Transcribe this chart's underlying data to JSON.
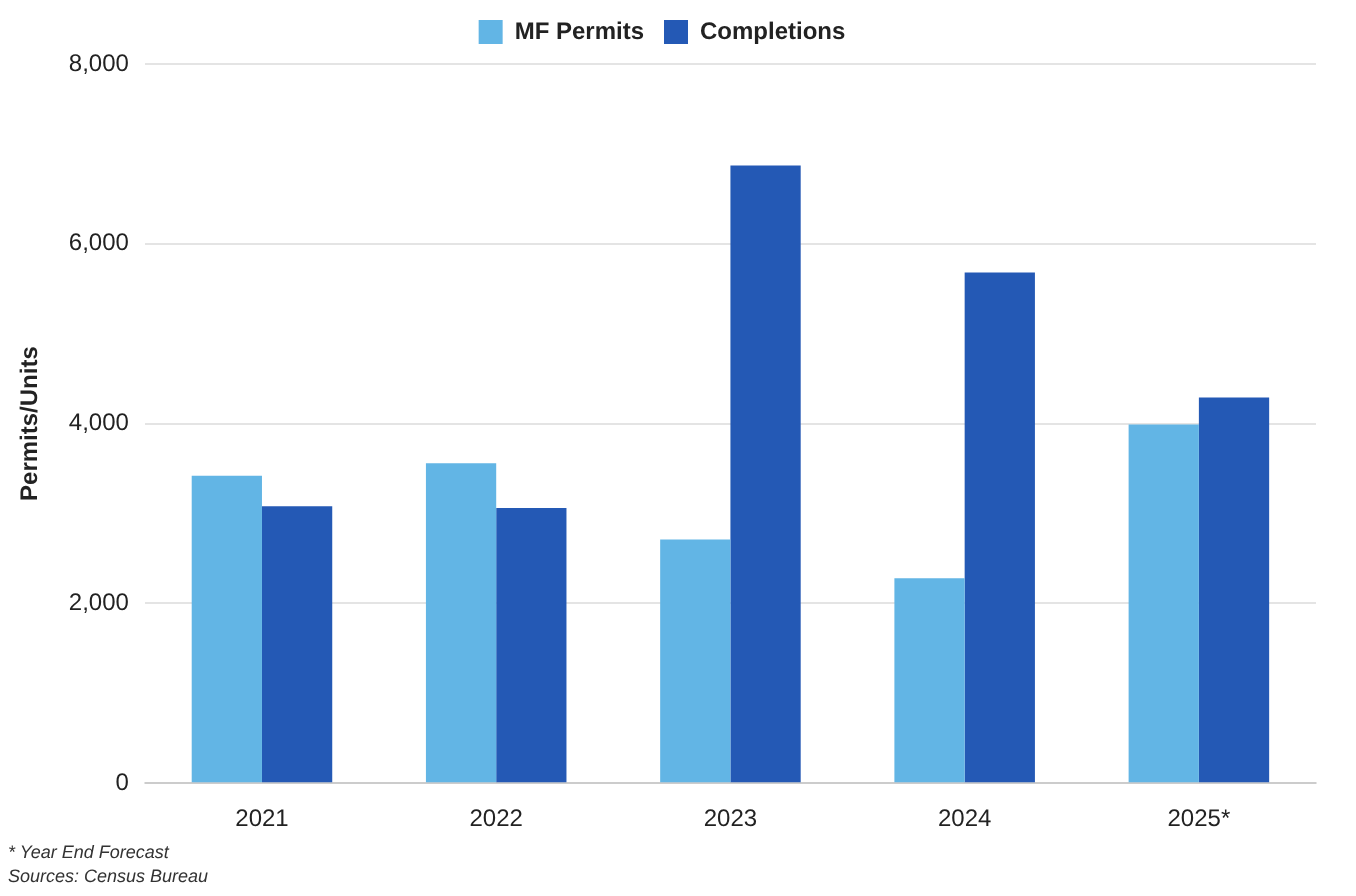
{
  "chart_data": {
    "type": "bar",
    "ylabel": "Permits/Units",
    "categories": [
      "2021",
      "2022",
      "2023",
      "2024",
      "2025*"
    ],
    "series": [
      {
        "name": "MF Permits",
        "color": "#62b5e5",
        "values": [
          3420,
          3560,
          2710,
          2280,
          3990
        ]
      },
      {
        "name": "Completions",
        "color": "#2459b5",
        "values": [
          3080,
          3060,
          6870,
          5680,
          4290
        ]
      }
    ],
    "ylim": [
      0,
      8000
    ],
    "yticks": [
      {
        "value": 0,
        "label": "0"
      },
      {
        "value": 2000,
        "label": "2,000"
      },
      {
        "value": 4000,
        "label": "4,000"
      },
      {
        "value": 6000,
        "label": "6,000"
      },
      {
        "value": 8000,
        "label": "8,000"
      }
    ],
    "grid": "y",
    "legend": "top",
    "annotations": [
      "* Year End Forecast",
      "Sources: Census Bureau"
    ]
  }
}
